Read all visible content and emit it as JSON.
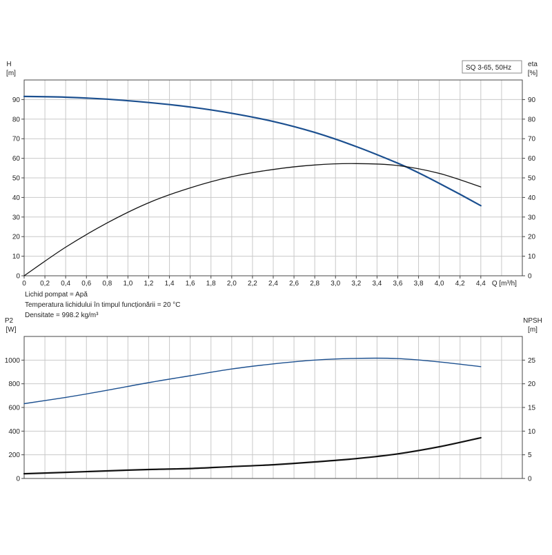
{
  "colors": {
    "blue_curve": "#1b4f8f",
    "black_curve": "#111111",
    "grid": "#c8c8c8"
  },
  "legend": {
    "label": "SQ 3-65, 50Hz"
  },
  "info": {
    "line1": "Lichid pompat = Apă",
    "line2": "Temperatura lichidului în timpul funcționării = 20 °C",
    "line3": "Densitate = 998.2 kg/m³"
  },
  "chart_data": [
    {
      "type": "line",
      "title": "",
      "xlabel": "Q [m³/h]",
      "x_ticks": [
        "0",
        "0,2",
        "0,4",
        "0,6",
        "0,8",
        "1,0",
        "1,2",
        "1,4",
        "1,6",
        "1,8",
        "2,0",
        "2,2",
        "2,4",
        "2,6",
        "2,8",
        "3,0",
        "3,2",
        "3,4",
        "3,6",
        "3,8",
        "4,0",
        "4,2",
        "4,4"
      ],
      "xlim": [
        0,
        4.8
      ],
      "ylabel_left": "H",
      "ylabel_left_unit": "[m]",
      "ylim_left": [
        0,
        100
      ],
      "ylabel_right": "eta",
      "ylabel_right_unit": "[%]",
      "ylim_right": [
        0,
        100
      ],
      "y_ticks": [
        0,
        10,
        20,
        30,
        40,
        50,
        60,
        70,
        80,
        90
      ],
      "grid": true,
      "series": [
        {
          "axis": "left",
          "color": "#1b4f8f",
          "x": [
            0,
            0.4,
            0.8,
            1.2,
            1.6,
            2.0,
            2.4,
            2.8,
            3.2,
            3.6,
            3.8,
            4.0,
            4.2,
            4.4
          ],
          "y": [
            91.6,
            91.2,
            90.2,
            88.5,
            86.2,
            83.0,
            78.8,
            73.2,
            66.0,
            57.5,
            52.6,
            47.2,
            41.6,
            35.8
          ]
        },
        {
          "axis": "right",
          "color": "#111111",
          "x": [
            0,
            0.4,
            0.8,
            1.2,
            1.6,
            2.0,
            2.4,
            2.8,
            3.2,
            3.6,
            4.0,
            4.4
          ],
          "y": [
            0,
            14.6,
            27.0,
            37.3,
            44.9,
            50.6,
            54.3,
            56.6,
            57.3,
            56.3,
            52.3,
            45.4
          ]
        }
      ]
    },
    {
      "type": "line",
      "title": "",
      "xlabel": "",
      "xlim": [
        0,
        4.8
      ],
      "ylabel_left": "P2",
      "ylabel_left_unit": "[W]",
      "ylim_left": [
        0,
        1200
      ],
      "y_ticks_left": [
        0,
        200,
        400,
        600,
        800,
        1000
      ],
      "ylabel_right": "NPSH",
      "ylabel_right_unit": "[m]",
      "ylim_right": [
        0,
        30
      ],
      "y_ticks_right": [
        0,
        5,
        10,
        15,
        20,
        25
      ],
      "grid": true,
      "series": [
        {
          "axis": "left",
          "color": "#1b4f8f",
          "x": [
            0,
            0.4,
            0.8,
            1.2,
            1.6,
            2.0,
            2.4,
            2.8,
            3.2,
            3.6,
            4.0,
            4.4
          ],
          "y": [
            632,
            685,
            745,
            810,
            868,
            925,
            968,
            1000,
            1015,
            1013,
            985,
            945
          ]
        },
        {
          "axis": "right",
          "color": "#111111",
          "x": [
            0,
            0.4,
            0.8,
            1.2,
            1.6,
            2.0,
            2.4,
            2.8,
            3.2,
            3.6,
            4.0,
            4.4
          ],
          "y": [
            1.0,
            1.3,
            1.6,
            1.9,
            2.1,
            2.5,
            2.9,
            3.5,
            4.2,
            5.2,
            6.7,
            8.6
          ]
        }
      ]
    }
  ]
}
